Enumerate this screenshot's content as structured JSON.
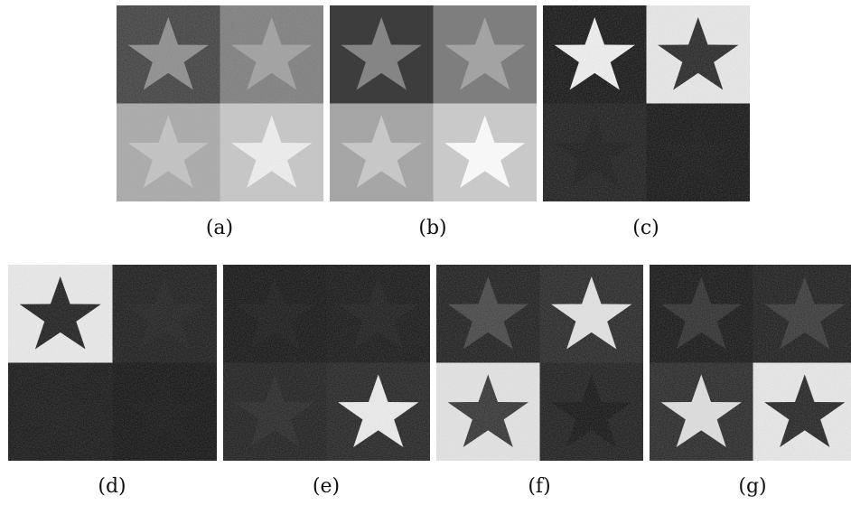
{
  "figure": {
    "panels": [
      {
        "id": "a",
        "caption": "(a)",
        "noisy": true,
        "quadrants": [
          "#3a3a3a",
          "#7a7a7a",
          "#a8a8a8",
          "#c8c8c8"
        ],
        "stars": [
          "#8a8a8a",
          "#9e9e9e",
          "#c4c4c4",
          "#f4f4f4"
        ]
      },
      {
        "id": "b",
        "caption": "(b)",
        "noisy": false,
        "quadrants": [
          "#3d3d3d",
          "#7e7e7e",
          "#a6a6a6",
          "#c9c9c9"
        ],
        "stars": [
          "#858585",
          "#a3a3a3",
          "#c7c7c7",
          "#f7f7f7"
        ]
      },
      {
        "id": "c",
        "caption": "(c)",
        "noisy": true,
        "quadrants": [
          "#0b0b0b",
          "#ececec",
          "#141414",
          "#0a0a0a"
        ],
        "stars": [
          "#f4f4f4",
          "#1e1e1e",
          "#0f0f0f",
          "#0c0c0c"
        ]
      },
      {
        "id": "d",
        "caption": "(d)",
        "noisy": true,
        "quadrants": [
          "#eeeeee",
          "#121212",
          "#0d0d0d",
          "#080808"
        ],
        "stars": [
          "#151515",
          "#161616",
          "#0e0e0e",
          "#0a0a0a"
        ]
      },
      {
        "id": "e",
        "caption": "(e)",
        "noisy": true,
        "quadrants": [
          "#0a0a0a",
          "#0d0d0d",
          "#151515",
          "#1b1b1b"
        ],
        "stars": [
          "#0f0f0f",
          "#131313",
          "#1e1e1e",
          "#f0f0f0"
        ]
      },
      {
        "id": "f",
        "caption": "(f)",
        "noisy": true,
        "quadrants": [
          "#151515",
          "#1f1f1f",
          "#e7e7e7",
          "#141414"
        ],
        "stars": [
          "#3e3e3e",
          "#e6e6e6",
          "#2c2c2c",
          "#090909"
        ]
      },
      {
        "id": "g",
        "caption": "(g)",
        "noisy": true,
        "quadrants": [
          "#0c0c0c",
          "#141414",
          "#202020",
          "#ececec"
        ],
        "stars": [
          "#262626",
          "#303030",
          "#e2e2e2",
          "#1b1b1b"
        ]
      }
    ]
  }
}
